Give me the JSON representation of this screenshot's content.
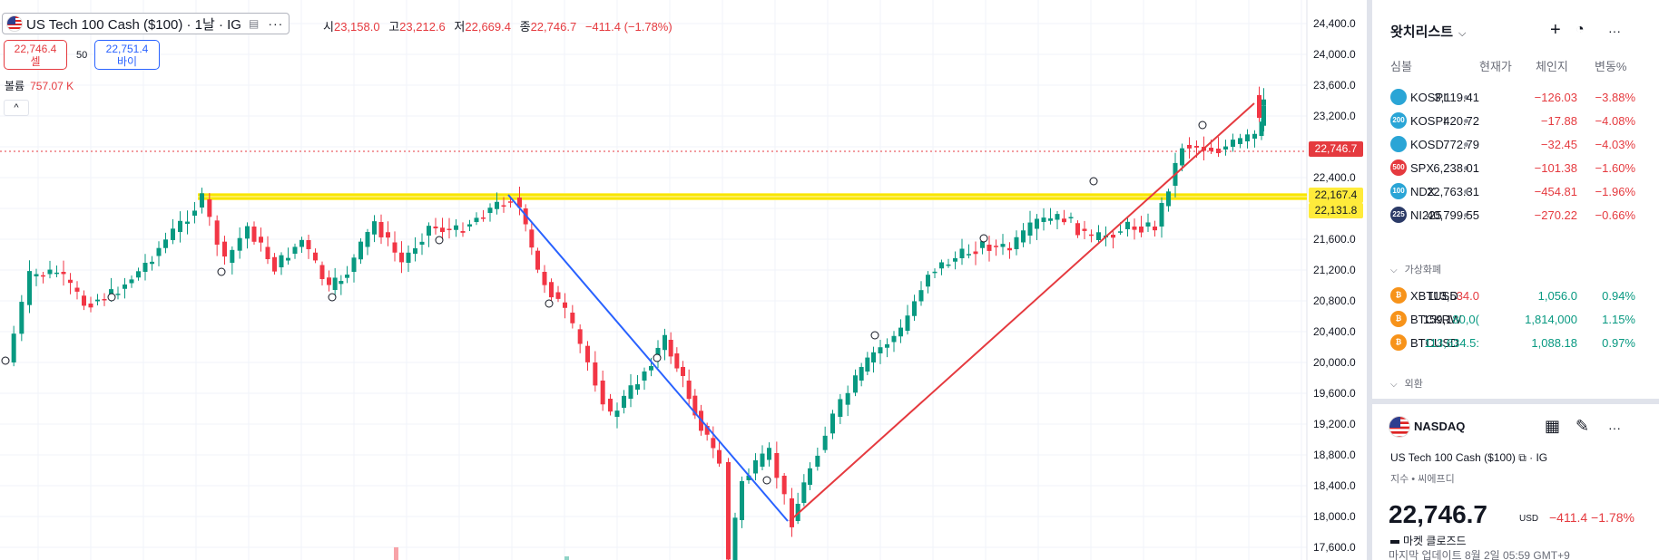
{
  "header": {
    "symbol_title": "US Tech 100 Cash ($100) · 1날 · IG",
    "more_label": "···",
    "ohlc": {
      "open_label": "시",
      "open": "23,158.0",
      "high_label": "고",
      "high": "23,212.6",
      "low_label": "저",
      "low": "22,669.4",
      "close_label": "종",
      "close": "22,746.7",
      "change": "−411.4 (−1.78%)"
    },
    "sell": {
      "price": "22,746.4",
      "label": "셀"
    },
    "spread": "50",
    "buy": {
      "price": "22,751.4",
      "label": "바이"
    },
    "volume": {
      "label": "볼륨",
      "value": "757.07 K"
    },
    "collapse_icon": "^"
  },
  "price_axis": {
    "ticks": [
      "24,400.0",
      "24,000.0",
      "23,600.0",
      "23,200.0",
      "22,400.0",
      "21,600.0",
      "21,200.0",
      "20,800.0",
      "20,400.0",
      "20,000.0",
      "19,600.0",
      "19,200.0",
      "18,800.0",
      "18,400.0",
      "18,000.0",
      "17,600.0"
    ],
    "current_price": "22,746.7",
    "level_upper": "22,167.4",
    "level_lower": "22,131.8"
  },
  "colors": {
    "up": "#089981",
    "down": "#f23645",
    "trend_down": "#2962ff",
    "trend_up": "#e53a3f",
    "level": "#f7e600"
  },
  "watchlist": {
    "title": "왓치리스트",
    "columns": {
      "symbol": "심볼",
      "price": "현재가",
      "change": "체인지",
      "percent": "변동%"
    },
    "rows": [
      {
        "icon": "kospi-icon",
        "badge": "",
        "color": "#2aa5d6",
        "symbol": "KOSPI",
        "price": "3,119.41",
        "change": "−126.03",
        "percent": "−3.88%",
        "dir": "neg"
      },
      {
        "icon": "kospi200-icon",
        "badge": "200",
        "color": "#2aa5d6",
        "symbol": "KOSPI",
        "price": "420.72",
        "change": "−17.88",
        "percent": "−4.08%",
        "dir": "neg"
      },
      {
        "icon": "kosdaq-icon",
        "badge": "",
        "color": "#2aa5d6",
        "symbol": "KOSD.",
        "price": "772.79",
        "change": "−32.45",
        "percent": "−4.03%",
        "dir": "neg"
      },
      {
        "icon": "spx-icon",
        "badge": "500",
        "color": "#e53a3f",
        "symbol": "SPX",
        "price": "6,238.01",
        "change": "−101.38",
        "percent": "−1.60%",
        "dir": "neg"
      },
      {
        "icon": "ndx-icon",
        "badge": "100",
        "color": "#2aa5d6",
        "symbol": "NDX",
        "price": "22,763.31",
        "change": "−454.81",
        "percent": "−1.96%",
        "dir": "neg"
      },
      {
        "icon": "ni225-icon",
        "badge": "225",
        "color": "#2b3a67",
        "symbol": "NI225",
        "price": "40,799.55",
        "change": "−270.22",
        "percent": "−0.66%",
        "dir": "neg"
      }
    ],
    "crypto_section": "가상화폐",
    "crypto_rows": [
      {
        "icon": "bitcoin-icon",
        "symbol": "XBTUSD",
        "price_a": "113,5",
        "price_b": "34.0",
        "b_dir": "neg",
        "change": "1,056.0",
        "percent": "0.94%"
      },
      {
        "icon": "bitcoin-krw-icon",
        "symbol": "BTCKRW",
        "price_a": "159,1",
        "price_b": "80,0(",
        "b_dir": "pos",
        "change": "1,814,000",
        "percent": "1.15%"
      },
      {
        "icon": "bitcoin-usd-icon",
        "symbol": "BTCUSD",
        "price_a": "",
        "price_b": "113,634.5:",
        "b_dir": "pos",
        "change": "1,088.18",
        "percent": "0.97%"
      }
    ],
    "fx_section": "외환"
  },
  "details": {
    "exchange": "NASDAQ",
    "name": "US Tech 100 Cash ($100)",
    "broker": "· IG",
    "type": "지수 • 씨에프디",
    "price": "22,746.7",
    "currency": "USD",
    "change": "−411.4  −1.78%",
    "status": "마켓 클로즈드",
    "last_update": "마지막 업데이트 8월 2일 05:59 GMT+9"
  }
}
